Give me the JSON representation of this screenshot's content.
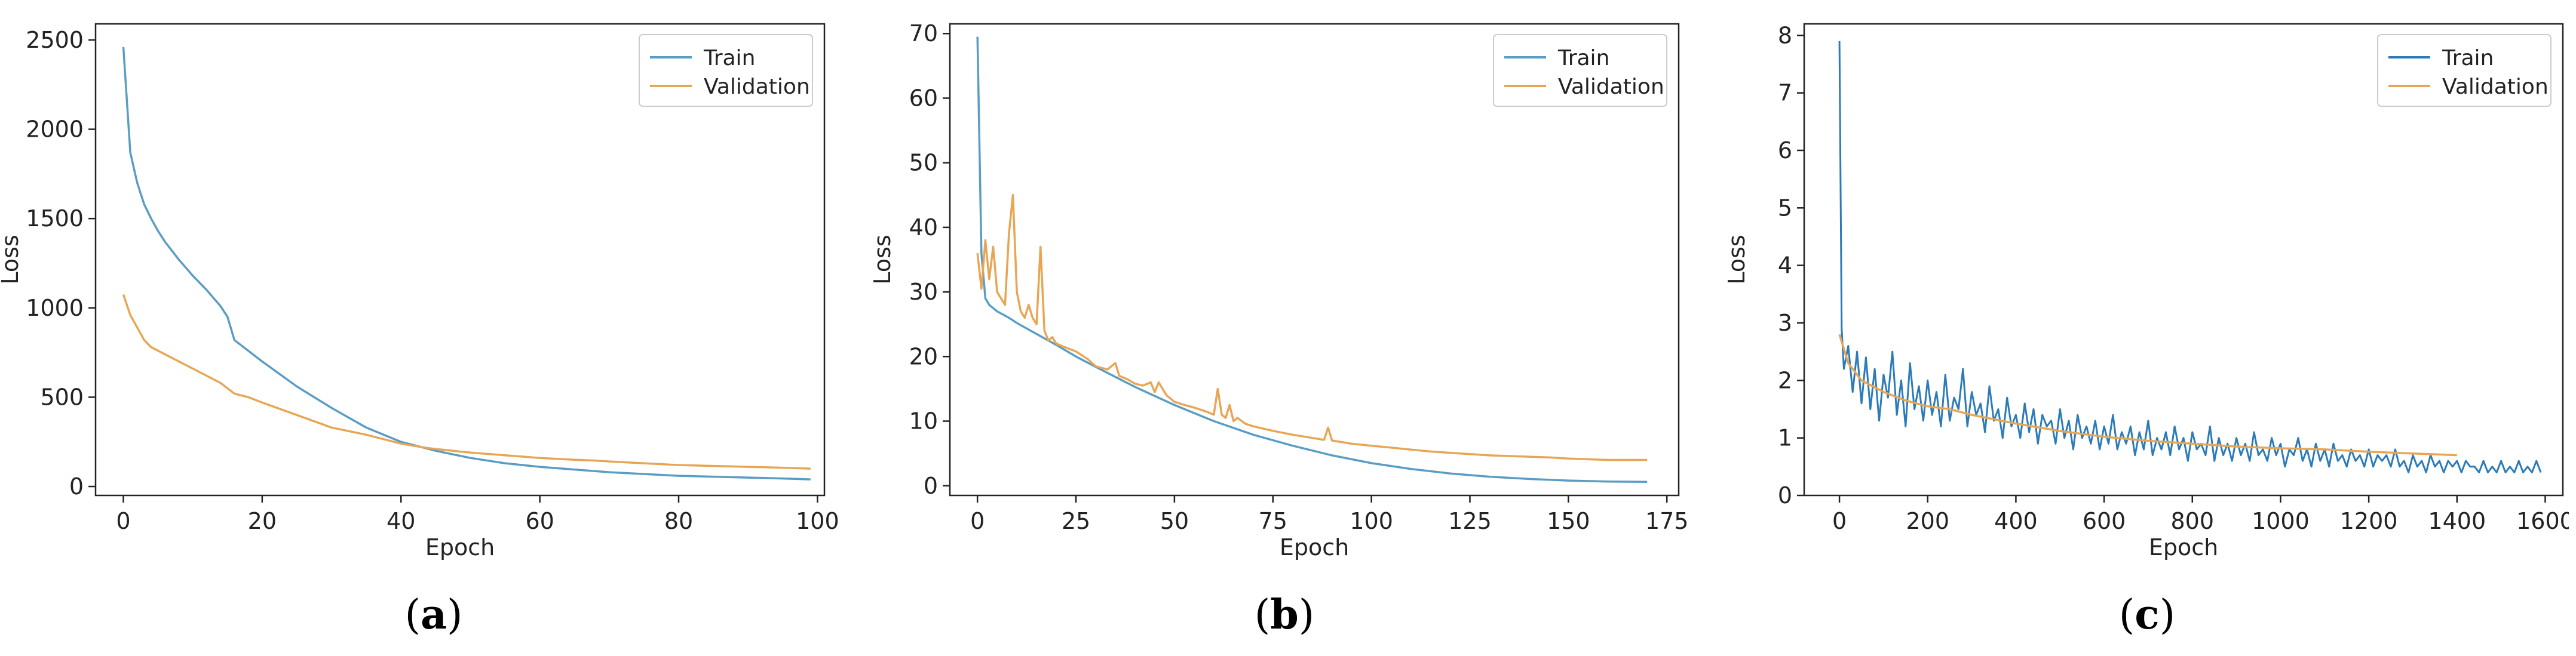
{
  "figure": {
    "panels": [
      {
        "caption_open": "(",
        "caption_letter": "a",
        "caption_close": ")"
      },
      {
        "caption_open": "(",
        "caption_letter": "b",
        "caption_close": ")"
      },
      {
        "caption_open": "(",
        "caption_letter": "c",
        "caption_close": ")"
      }
    ]
  },
  "colors": {
    "train": "#5a9dc4",
    "validation": "#e8a654",
    "train_c": "#2b7bb9"
  },
  "chart_data": [
    {
      "type": "line",
      "xlabel": "Epoch",
      "ylabel": "Loss",
      "xlim": [
        -4,
        101
      ],
      "ylim": [
        -50,
        2590
      ],
      "xticks": [
        0,
        20,
        40,
        60,
        80,
        100
      ],
      "yticks": [
        0,
        500,
        1000,
        1500,
        2000,
        2500
      ],
      "grid": false,
      "legend": "top-right",
      "series": [
        {
          "name": "Train",
          "color": "#5a9dc4",
          "x": [
            0,
            1,
            2,
            3,
            4,
            5,
            6,
            8,
            10,
            12,
            14,
            15,
            16,
            18,
            20,
            25,
            30,
            35,
            40,
            45,
            50,
            55,
            60,
            65,
            70,
            75,
            80,
            85,
            90,
            95,
            99
          ],
          "y": [
            2460,
            1870,
            1700,
            1580,
            1500,
            1430,
            1370,
            1270,
            1180,
            1100,
            1010,
            950,
            820,
            760,
            700,
            560,
            440,
            330,
            250,
            200,
            160,
            130,
            110,
            95,
            80,
            70,
            60,
            55,
            50,
            45,
            40
          ]
        },
        {
          "name": "Validation",
          "color": "#e8a654",
          "x": [
            0,
            1,
            2,
            3,
            4,
            5,
            6,
            8,
            10,
            12,
            14,
            15,
            16,
            18,
            20,
            25,
            30,
            35,
            40,
            43,
            45,
            50,
            55,
            60,
            65,
            68,
            70,
            75,
            80,
            85,
            90,
            95,
            99
          ],
          "y": [
            1075,
            960,
            890,
            820,
            780,
            760,
            740,
            700,
            660,
            620,
            580,
            550,
            520,
            500,
            470,
            400,
            330,
            290,
            240,
            220,
            210,
            190,
            175,
            160,
            150,
            145,
            140,
            130,
            120,
            115,
            110,
            105,
            100
          ]
        }
      ]
    },
    {
      "type": "line",
      "xlabel": "Epoch",
      "ylabel": "Loss",
      "xlim": [
        -7,
        178
      ],
      "ylim": [
        -1.5,
        71.5
      ],
      "xticks": [
        0,
        25,
        50,
        75,
        100,
        125,
        150,
        175
      ],
      "yticks": [
        0,
        10,
        20,
        30,
        40,
        50,
        60,
        70
      ],
      "grid": false,
      "legend": "top-right",
      "series": [
        {
          "name": "Train",
          "color": "#5a9dc4",
          "x": [
            0,
            1,
            2,
            3,
            5,
            8,
            10,
            15,
            20,
            25,
            30,
            40,
            50,
            60,
            70,
            80,
            90,
            100,
            110,
            120,
            130,
            140,
            150,
            160,
            170
          ],
          "y": [
            69.5,
            36,
            29,
            28,
            27,
            26,
            25.2,
            23.5,
            21.8,
            20,
            18.4,
            15.3,
            12.5,
            10,
            7.9,
            6.2,
            4.7,
            3.5,
            2.6,
            1.9,
            1.4,
            1.05,
            0.8,
            0.65,
            0.6
          ]
        },
        {
          "name": "Validation",
          "color": "#e8a654",
          "x": [
            0,
            1,
            2,
            3,
            4,
            5,
            6,
            7,
            8,
            9,
            10,
            11,
            12,
            13,
            14,
            15,
            16,
            17,
            18,
            19,
            20,
            22,
            25,
            28,
            30,
            33,
            35,
            36,
            38,
            40,
            42,
            44,
            45,
            46,
            48,
            50,
            52,
            55,
            58,
            60,
            61,
            62,
            63,
            64,
            65,
            66,
            68,
            70,
            75,
            80,
            85,
            88,
            89,
            90,
            95,
            100,
            105,
            110,
            115,
            120,
            125,
            130,
            135,
            140,
            145,
            150,
            155,
            160,
            165,
            170
          ],
          "y": [
            36,
            30.5,
            38,
            32,
            37,
            30,
            29,
            28,
            39,
            45,
            30,
            27,
            26,
            28,
            26,
            25,
            37,
            24,
            22.5,
            23,
            22,
            21.5,
            20.8,
            19.6,
            18.5,
            18,
            19,
            17,
            16.5,
            15.8,
            15.5,
            16,
            14.5,
            16,
            14,
            13,
            12.6,
            12.1,
            11.5,
            11,
            15,
            11,
            10.5,
            12.5,
            10,
            10.5,
            9.6,
            9.2,
            8.5,
            7.9,
            7.4,
            7.1,
            9,
            7,
            6.5,
            6.2,
            5.9,
            5.6,
            5.3,
            5.1,
            4.9,
            4.7,
            4.6,
            4.5,
            4.4,
            4.2,
            4.1,
            4.0,
            4.0,
            4.0
          ]
        }
      ]
    },
    {
      "type": "line",
      "xlabel": "Epoch",
      "ylabel": "Loss",
      "xlim": [
        -80,
        1640
      ],
      "ylim": [
        0,
        8.2
      ],
      "xticks": [
        0,
        200,
        400,
        600,
        800,
        1000,
        1200,
        1400,
        1600
      ],
      "yticks": [
        0,
        1,
        2,
        3,
        4,
        5,
        6,
        7,
        8
      ],
      "grid": false,
      "legend": "top-right",
      "series": [
        {
          "name": "Train",
          "color": "#2b7bb9",
          "x": [
            0,
            5,
            10,
            20,
            30,
            40,
            50,
            60,
            70,
            80,
            90,
            100,
            110,
            120,
            130,
            140,
            150,
            160,
            170,
            180,
            190,
            200,
            210,
            220,
            230,
            240,
            250,
            260,
            270,
            280,
            290,
            300,
            310,
            320,
            330,
            340,
            350,
            360,
            370,
            380,
            390,
            400,
            410,
            420,
            430,
            440,
            450,
            460,
            470,
            480,
            490,
            500,
            510,
            520,
            530,
            540,
            550,
            560,
            570,
            580,
            590,
            600,
            610,
            620,
            630,
            640,
            650,
            660,
            670,
            680,
            690,
            700,
            710,
            720,
            730,
            740,
            750,
            760,
            770,
            780,
            790,
            800,
            810,
            820,
            830,
            840,
            850,
            860,
            870,
            880,
            890,
            900,
            910,
            920,
            930,
            940,
            950,
            960,
            970,
            980,
            990,
            1000,
            1010,
            1020,
            1030,
            1040,
            1050,
            1060,
            1070,
            1080,
            1090,
            1100,
            1110,
            1120,
            1130,
            1140,
            1150,
            1160,
            1170,
            1180,
            1190,
            1200,
            1210,
            1220,
            1230,
            1240,
            1250,
            1260,
            1270,
            1280,
            1290,
            1300,
            1310,
            1320,
            1330,
            1340,
            1350,
            1360,
            1370,
            1380,
            1390,
            1400,
            1410,
            1420,
            1430,
            1440,
            1450,
            1460,
            1470,
            1480,
            1490,
            1500,
            1510,
            1520,
            1530,
            1540,
            1550,
            1560,
            1570,
            1580,
            1590
          ],
          "y": [
            7.9,
            2.9,
            2.2,
            2.6,
            1.8,
            2.5,
            1.6,
            2.4,
            1.5,
            2.2,
            1.3,
            2.1,
            1.7,
            2.5,
            1.4,
            2.0,
            1.2,
            2.3,
            1.5,
            1.9,
            1.3,
            2.0,
            1.4,
            1.8,
            1.2,
            2.1,
            1.3,
            1.7,
            1.5,
            2.2,
            1.2,
            1.8,
            1.4,
            1.6,
            1.1,
            1.9,
            1.3,
            1.5,
            1.0,
            1.7,
            1.2,
            1.4,
            1.0,
            1.6,
            1.1,
            1.5,
            0.9,
            1.4,
            1.2,
            1.3,
            0.9,
            1.5,
            1.0,
            1.3,
            0.8,
            1.4,
            1.0,
            1.2,
            0.9,
            1.3,
            0.8,
            1.2,
            0.9,
            1.4,
            0.8,
            1.1,
            0.9,
            1.2,
            0.7,
            1.1,
            0.8,
            1.3,
            0.7,
            1.0,
            0.8,
            1.1,
            0.7,
            1.2,
            0.8,
            1.0,
            0.6,
            1.1,
            0.8,
            0.9,
            0.7,
            1.2,
            0.6,
            1.0,
            0.7,
            0.9,
            0.6,
            1.0,
            0.7,
            0.9,
            0.6,
            1.1,
            0.7,
            0.8,
            0.6,
            1.0,
            0.7,
            0.9,
            0.5,
            0.8,
            0.7,
            1.0,
            0.6,
            0.8,
            0.5,
            0.9,
            0.6,
            0.8,
            0.5,
            0.9,
            0.6,
            0.7,
            0.5,
            0.8,
            0.6,
            0.7,
            0.5,
            0.8,
            0.5,
            0.7,
            0.6,
            0.7,
            0.5,
            0.8,
            0.5,
            0.6,
            0.4,
            0.7,
            0.5,
            0.6,
            0.4,
            0.7,
            0.5,
            0.6,
            0.4,
            0.6,
            0.5,
            0.6,
            0.4,
            0.6,
            0.5,
            0.5,
            0.4,
            0.6,
            0.4,
            0.5,
            0.4,
            0.6,
            0.4,
            0.5,
            0.4,
            0.6,
            0.4,
            0.5,
            0.4,
            0.6,
            0.4
          ]
        },
        {
          "name": "Validation",
          "color": "#e8a654",
          "x": [
            0,
            20,
            50,
            100,
            150,
            200,
            250,
            300,
            400,
            500,
            600,
            700,
            800,
            900,
            1000,
            1100,
            1200,
            1300,
            1400
          ],
          "y": [
            2.8,
            2.3,
            2.0,
            1.8,
            1.65,
            1.55,
            1.5,
            1.4,
            1.25,
            1.12,
            1.02,
            0.95,
            0.9,
            0.85,
            0.82,
            0.8,
            0.76,
            0.73,
            0.7
          ]
        }
      ]
    }
  ]
}
